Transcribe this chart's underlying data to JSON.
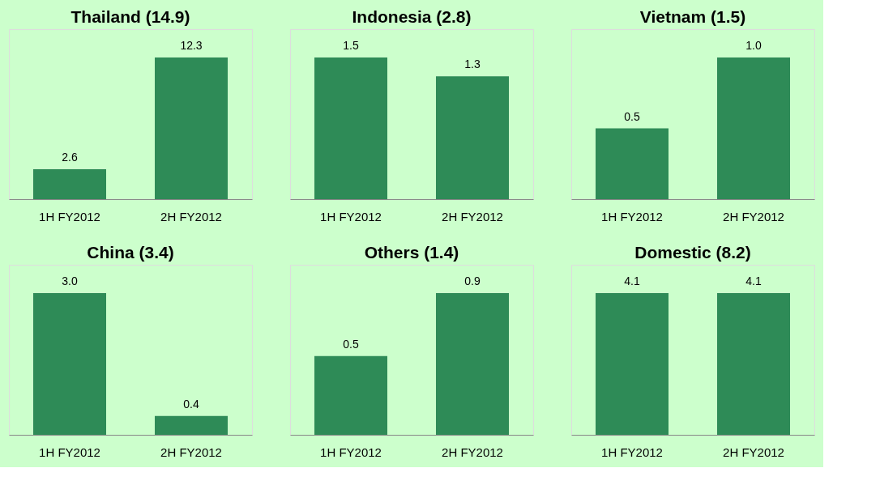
{
  "chart_data": [
    {
      "type": "bar",
      "title": "Thailand (14.9)",
      "categories": [
        "1H FY2012",
        "2H FY2012"
      ],
      "values": [
        2.6,
        12.3
      ],
      "value_labels": [
        "2.6",
        "12.3"
      ],
      "color": "#2e8b57",
      "tick_labels": "x",
      "grid": false
    },
    {
      "type": "bar",
      "title": "Indonesia (2.8)",
      "categories": [
        "1H FY2012",
        "2H FY2012"
      ],
      "values": [
        1.5,
        1.3
      ],
      "value_labels": [
        "1.5",
        "1.3"
      ],
      "color": "#2e8b57",
      "tick_labels": "x",
      "grid": false
    },
    {
      "type": "bar",
      "title": "Vietnam (1.5)",
      "categories": [
        "1H FY2012",
        "2H FY2012"
      ],
      "values": [
        0.5,
        1.0
      ],
      "value_labels": [
        "0.5",
        "1.0"
      ],
      "color": "#2e8b57",
      "tick_labels": "x",
      "grid": false
    },
    {
      "type": "bar",
      "title": "China (3.4)",
      "categories": [
        "1H FY2012",
        "2H FY2012"
      ],
      "values": [
        3.0,
        0.4
      ],
      "value_labels": [
        "3.0",
        "0.4"
      ],
      "color": "#2e8b57",
      "tick_labels": "x",
      "grid": false
    },
    {
      "type": "bar",
      "title": "Others (1.4)",
      "categories": [
        "1H FY2012",
        "2H FY2012"
      ],
      "values": [
        0.5,
        0.9
      ],
      "value_labels": [
        "0.5",
        "0.9"
      ],
      "color": "#2e8b57",
      "tick_labels": "x",
      "grid": false
    },
    {
      "type": "bar",
      "title": "Domestic (8.2)",
      "categories": [
        "1H FY2012",
        "2H FY2012"
      ],
      "values": [
        4.1,
        4.1
      ],
      "value_labels": [
        "4.1",
        "4.1"
      ],
      "color": "#2e8b57",
      "tick_labels": "x",
      "grid": false
    }
  ]
}
